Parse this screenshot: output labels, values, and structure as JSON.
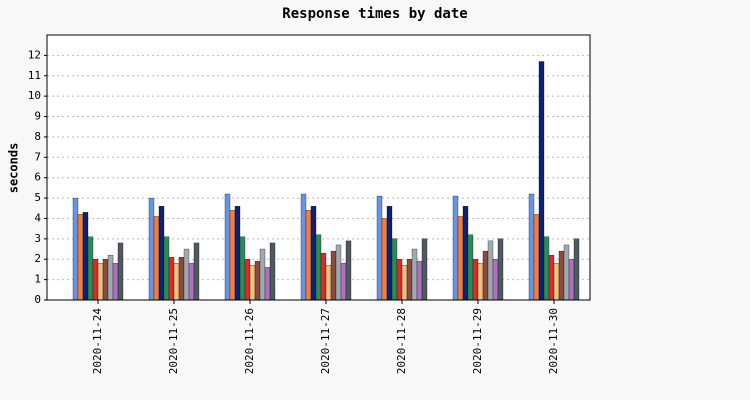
{
  "chart_data": {
    "type": "bar",
    "title": "Response times by date",
    "y_label": "seconds",
    "categories": [
      "2020-11-24",
      "2020-11-25",
      "2020-11-26",
      "2020-11-27",
      "2020-11-28",
      "2020-11-29",
      "2020-11-30"
    ],
    "series": [
      {
        "color": "#6495ed",
        "values": [
          5.0,
          5.0,
          5.2,
          5.2,
          5.1,
          5.1,
          5.2
        ]
      },
      {
        "color": "#f08040",
        "values": [
          4.2,
          4.1,
          4.4,
          4.4,
          4.0,
          4.1,
          4.2
        ]
      },
      {
        "color": "#0a2277",
        "values": [
          4.3,
          4.6,
          4.6,
          4.6,
          4.6,
          4.6,
          11.7
        ]
      },
      {
        "color": "#2e8b57",
        "values": [
          3.1,
          3.1,
          3.1,
          3.2,
          3.0,
          3.2,
          3.1
        ]
      },
      {
        "color": "#e02828",
        "values": [
          2.0,
          2.1,
          2.0,
          2.3,
          2.0,
          2.0,
          2.2
        ]
      },
      {
        "color": "#f0c080",
        "values": [
          1.8,
          1.8,
          1.7,
          1.7,
          1.7,
          1.8,
          1.8
        ]
      },
      {
        "color": "#8b4a3a",
        "values": [
          2.0,
          2.1,
          1.9,
          2.4,
          2.0,
          2.4,
          2.4
        ]
      },
      {
        "color": "#a0a8b0",
        "values": [
          2.2,
          2.5,
          2.5,
          2.7,
          2.5,
          2.9,
          2.7
        ]
      },
      {
        "color": "#b070c0",
        "values": [
          1.8,
          1.8,
          1.6,
          1.8,
          1.9,
          2.0,
          2.0
        ]
      },
      {
        "color": "#505860",
        "values": [
          2.8,
          2.8,
          2.8,
          2.9,
          3.0,
          3.0,
          3.0
        ]
      }
    ],
    "ylim": [
      0,
      13
    ],
    "yticks": [
      0,
      1,
      2,
      3,
      4,
      5,
      6,
      7,
      8,
      9,
      10,
      11,
      12
    ],
    "grid": true
  }
}
